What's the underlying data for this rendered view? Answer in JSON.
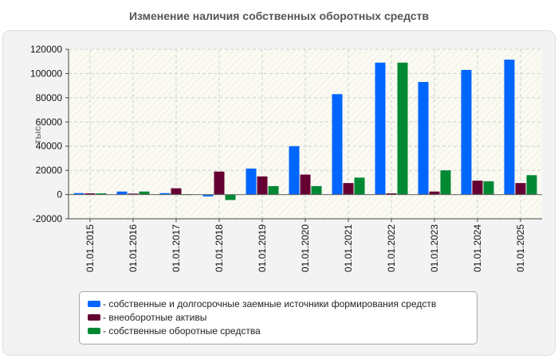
{
  "chart_data": {
    "type": "bar",
    "title": "Изменение наличия собственных оборотных средств",
    "ylabel": "тыс.",
    "xlabel": "",
    "ylim": [
      -20000,
      120000
    ],
    "yticks": [
      -20000,
      0,
      20000,
      40000,
      60000,
      80000,
      100000,
      120000
    ],
    "categories": [
      "01.01.2015",
      "01.01.2016",
      "01.01.2017",
      "01.01.2018",
      "01.01.2019",
      "01.01.2020",
      "01.01.2021",
      "01.01.2022",
      "01.01.2023",
      "01.01.2024",
      "01.01.2025"
    ],
    "series": [
      {
        "name": "- собственные и долгосрочные заемные источники формирования средств",
        "color": "#0066ff",
        "values": [
          1200,
          2500,
          1200,
          -1500,
          21500,
          40000,
          83000,
          109000,
          93000,
          103000,
          111500
        ]
      },
      {
        "name": "- внеоборотные активы",
        "color": "#660033",
        "values": [
          1000,
          800,
          5200,
          19000,
          15000,
          16500,
          9500,
          1000,
          2500,
          11500,
          9500
        ]
      },
      {
        "name": "- собственные оборотные средства",
        "color": "#008833",
        "values": [
          1000,
          2500,
          300,
          -4500,
          7000,
          7000,
          14000,
          109000,
          20000,
          11000,
          16000
        ]
      }
    ],
    "legend_position": "bottom",
    "grid": true
  }
}
